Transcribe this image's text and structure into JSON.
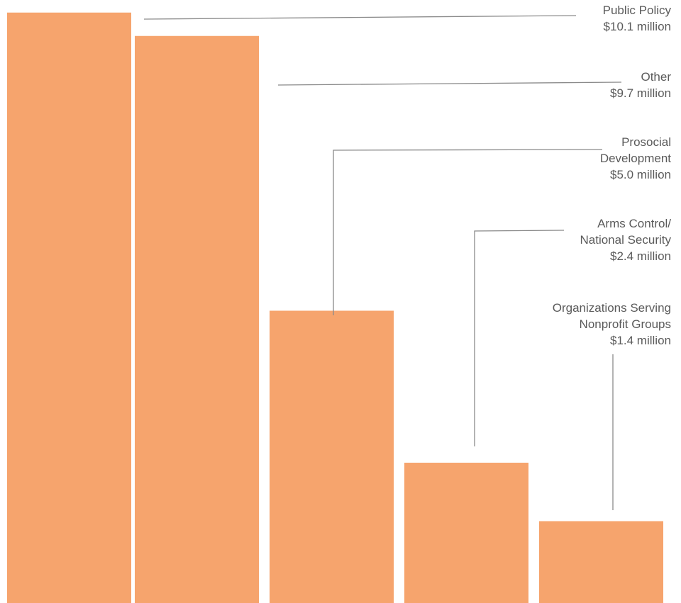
{
  "chart_data": {
    "type": "bar",
    "categories": [
      "Public Policy",
      "Other",
      "Prosocial Development",
      "Arms Control/ National Security",
      "Organizations Serving Nonprofit Groups"
    ],
    "values": [
      10.1,
      9.7,
      5.0,
      2.4,
      1.4
    ],
    "unit": "million",
    "labels": [
      [
        "Public Policy",
        "$10.1 million"
      ],
      [
        "Other",
        "$9.7 million"
      ],
      [
        "Prosocial",
        "Development",
        "$5.0 million"
      ],
      [
        "Arms Control/",
        "National Security",
        "$2.4 million"
      ],
      [
        "Organizations Serving",
        "Nonprofit Groups",
        "$1.4 million"
      ]
    ],
    "colors": {
      "bar": "#f6a46d",
      "leader": "#8a8a8a",
      "text": "#5a5a5a"
    },
    "grid": false,
    "legend": "none"
  }
}
